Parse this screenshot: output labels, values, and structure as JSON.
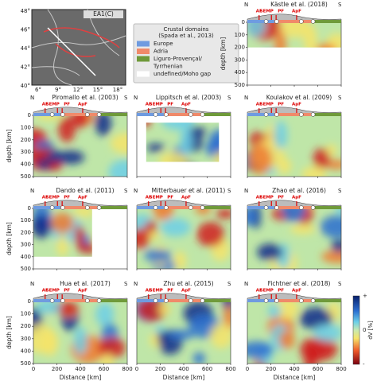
{
  "map": {
    "label": "EA1(C)",
    "lat_ticks": [
      "48°",
      "46°",
      "44°",
      "42°",
      "40°"
    ],
    "lon_ticks": [
      "6°",
      "9°",
      "12°",
      "15°",
      "18°"
    ]
  },
  "legend": {
    "title": "Crustal domains",
    "subtitle": "(Spada et al., 2013)",
    "items": [
      {
        "label": "Europe",
        "color": "#6f9be0"
      },
      {
        "label": "Adria",
        "color": "#f08a6a"
      },
      {
        "label": "Liguro-Provençal/",
        "color": "#6f9a3a"
      },
      {
        "label": "Tyrrhenian",
        "color": null
      },
      {
        "label": "undefined/Moho gap",
        "color": "#ffffff"
      }
    ]
  },
  "profile": {
    "north": "N",
    "south": "S",
    "faults": [
      "AF",
      "SEMP",
      "PF",
      "ApF"
    ]
  },
  "axes": {
    "ylabel": "depth [km]",
    "xlabel": "Distance [km]",
    "yticks": [
      0,
      100,
      200,
      300,
      400,
      500
    ],
    "xticks": [
      0,
      200,
      400,
      600,
      800
    ]
  },
  "colorbar": {
    "label": "dV [%]",
    "ticks": [
      "+",
      "0",
      "-"
    ]
  },
  "panels": [
    {
      "title": "Kästle et al. (2018)"
    },
    {
      "title": "Piromallo et al. (2003)"
    },
    {
      "title": "Lippitsch et al. (2003)"
    },
    {
      "title": "Koulakov et al. (2009)"
    },
    {
      "title": "Dando et al. (2011)"
    },
    {
      "title": "Mitterbauer et al. (2011)"
    },
    {
      "title": "Zhao et al. (2016)"
    },
    {
      "title": "Hua et al. (2017)"
    },
    {
      "title": "Zhu et al. (2015)"
    },
    {
      "title": "Fichtner et al. (2018)"
    }
  ]
}
